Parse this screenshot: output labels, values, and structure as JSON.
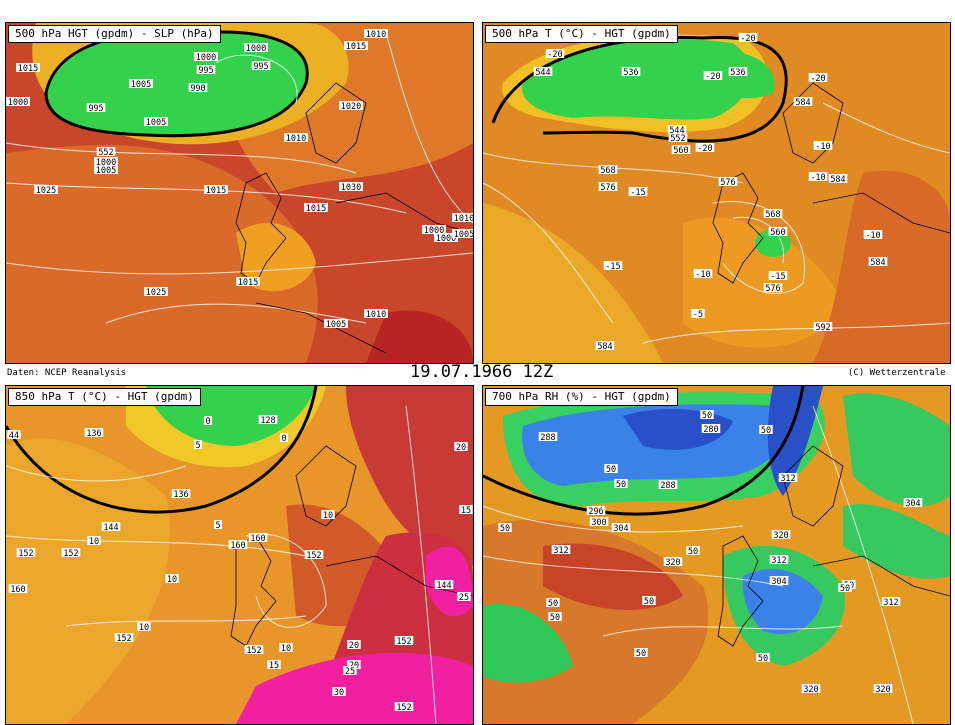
{
  "header": {
    "source": "Daten: NCEP Reanalysis",
    "datetime": "19.07.1966 12Z",
    "credit": "(C) Wetterzentrale"
  },
  "panels": [
    {
      "title": "500 hPa HGT (gpdm) - SLP (hPa)",
      "labels": [
        "1000",
        "1015",
        "1005",
        "995",
        "1000",
        "995",
        "990",
        "1000",
        "995",
        "1015",
        "1010",
        "1020",
        "1005",
        "552",
        "1000",
        "1005",
        "1010",
        "1025",
        "1015",
        "1030",
        "1015",
        "1010",
        "1000",
        "1000",
        "1005",
        "1025",
        "1015",
        "1010",
        "1005"
      ]
    },
    {
      "title": "500 hPa T (°C) - HGT (gpdm)",
      "labels": [
        "-20",
        "544",
        "536",
        "-20",
        "536",
        "-20",
        "-20",
        "552",
        "560",
        "-20",
        "544",
        "568",
        "576",
        "584",
        "-15",
        "576",
        "-10",
        "584",
        "568",
        "-10",
        "560",
        "-15",
        "-10",
        "-15",
        "576",
        "584",
        "-5",
        "592",
        "584",
        "-10"
      ]
    },
    {
      "title": "850 hPa T (°C) - HGT (gpdm)",
      "labels": [
        "44",
        "136",
        "0",
        "128",
        "0",
        "152",
        "20",
        "5",
        "136",
        "10",
        "144",
        "15",
        "5",
        "152",
        "10",
        "160",
        "160",
        "152",
        "10",
        "20",
        "144",
        "25",
        "160",
        "10",
        "152",
        "152",
        "15",
        "10",
        "20",
        "152",
        "25",
        "30",
        "152"
      ]
    },
    {
      "title": "700 hPa RH (%) - HGT (gpdm)",
      "labels": [
        "288",
        "50",
        "280",
        "50",
        "50",
        "50",
        "288",
        "312",
        "296",
        "300",
        "304",
        "50",
        "50",
        "304",
        "312",
        "320",
        "320",
        "312",
        "304",
        "50",
        "312",
        "50",
        "50",
        "50",
        "50",
        "50",
        "50",
        "320",
        "320"
      ]
    }
  ],
  "colors": {
    "warm_orange": "#e87a20",
    "dark_orange": "#cf4c2a",
    "red": "#b02020",
    "yellow": "#f0c020",
    "green": "#30d050",
    "blue": "#3070e0",
    "magenta": "#f020a0"
  }
}
